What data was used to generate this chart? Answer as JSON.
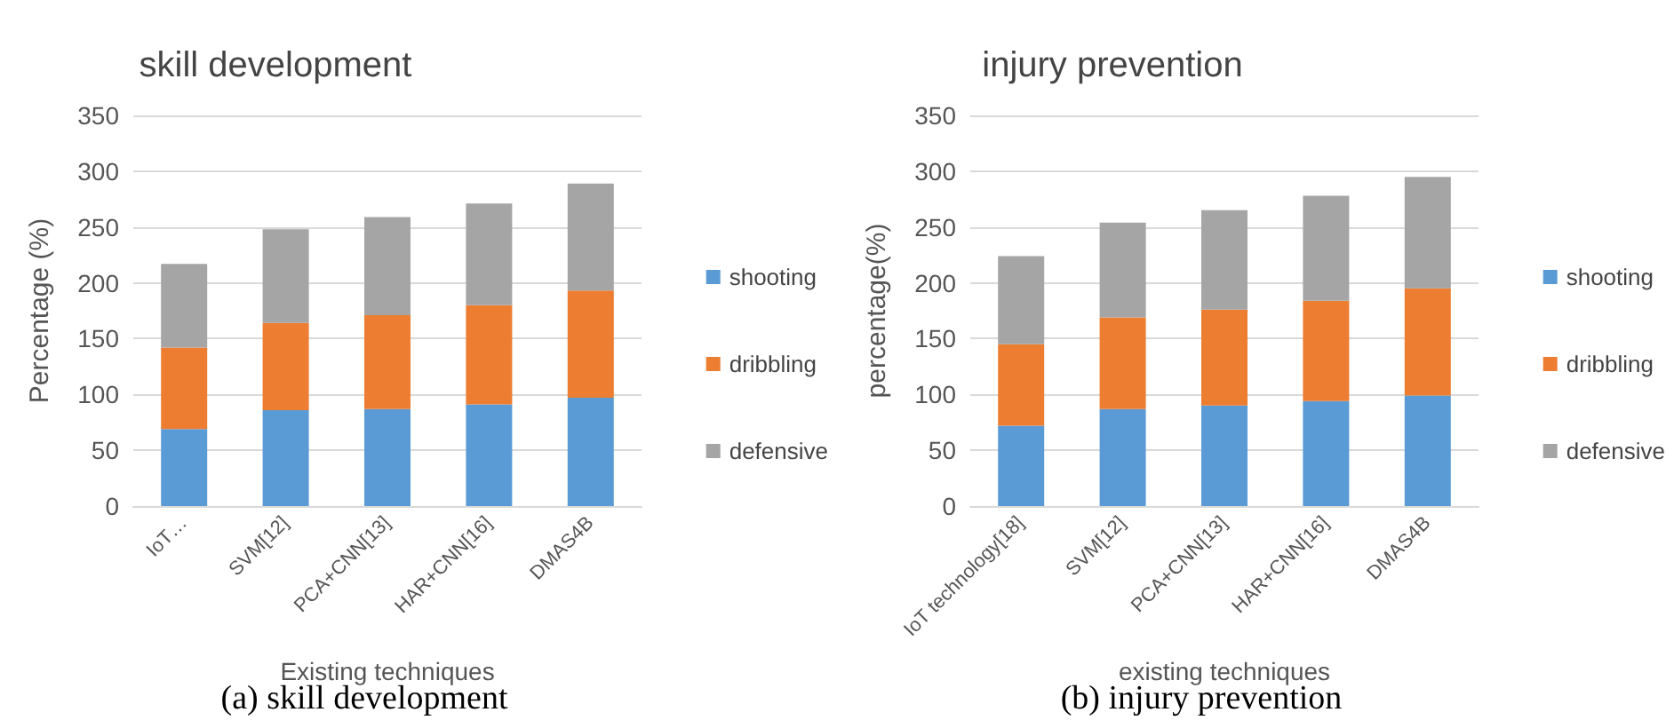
{
  "chart_data": [
    {
      "type": "bar",
      "stacked": true,
      "title": "skill development",
      "xlabel": "Existing techniques",
      "ylabel": "Percentage (%)",
      "categories": [
        "IoT…",
        "SVM[12]",
        "PCA+CNN[13]",
        "HAR+CNN[16]",
        "DMAS4B"
      ],
      "series": [
        {
          "name": "shooting",
          "color": "#5b9bd5",
          "values": [
            69,
            86,
            87,
            91,
            97
          ]
        },
        {
          "name": "dribbling",
          "color": "#ed7d31",
          "values": [
            73,
            78,
            84,
            89,
            96
          ]
        },
        {
          "name": "defensive",
          "color": "#a5a5a5",
          "values": [
            75,
            84,
            88,
            91,
            96
          ]
        }
      ],
      "ylim": [
        0,
        350
      ],
      "yticks": [
        0,
        50,
        100,
        150,
        200,
        250,
        300,
        350
      ],
      "grid": "y",
      "legend": "right",
      "annotations": [
        "(a) skill development"
      ]
    },
    {
      "type": "bar",
      "stacked": true,
      "title": "injury prevention",
      "xlabel": "existing techniques",
      "ylabel": "percentage(%)",
      "categories": [
        "IoT technology[18]",
        "SVM[12]",
        "PCA+CNN[13]",
        "HAR+CNN[16]",
        "DMAS4B"
      ],
      "series": [
        {
          "name": "shooting",
          "color": "#5b9bd5",
          "values": [
            72,
            87,
            90,
            94,
            99
          ]
        },
        {
          "name": "dribbling",
          "color": "#ed7d31",
          "values": [
            73,
            82,
            86,
            90,
            96
          ]
        },
        {
          "name": "defensive",
          "color": "#a5a5a5",
          "values": [
            79,
            85,
            89,
            94,
            100
          ]
        }
      ],
      "ylim": [
        0,
        350
      ],
      "yticks": [
        0,
        50,
        100,
        150,
        200,
        250,
        300,
        350
      ],
      "grid": "y",
      "legend": "right",
      "annotations": [
        "(b) injury prevention"
      ]
    }
  ]
}
